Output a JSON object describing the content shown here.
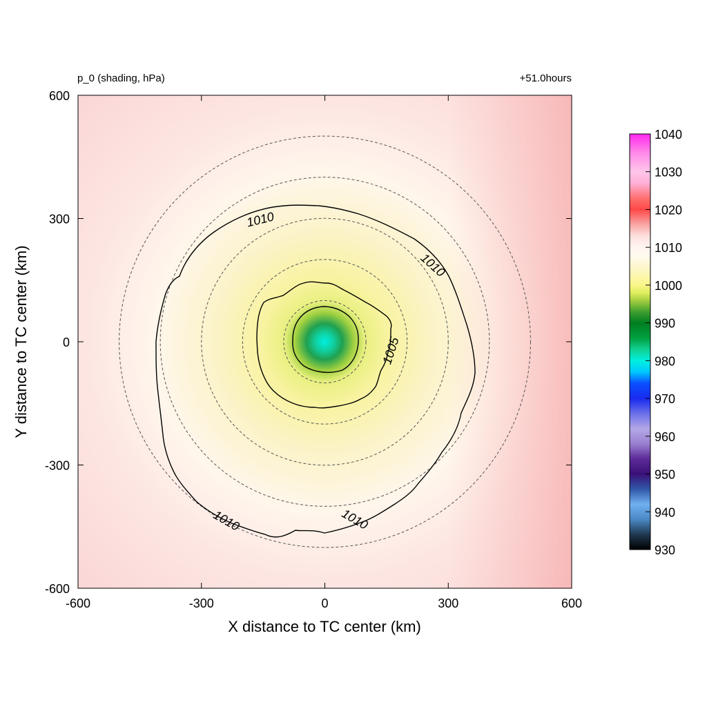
{
  "chart_data": {
    "type": "heatmap",
    "title_left": "p_0 (shading, hPa)",
    "title_right": "+51.0hours",
    "xlabel": "X distance to TC center (km)",
    "ylabel": "Y distance to TC center (km)",
    "xlim": [
      -600,
      600
    ],
    "ylim": [
      -600,
      600
    ],
    "xticks": [
      "-600",
      "-300",
      "0",
      "300",
      "600"
    ],
    "yticks": [
      "600",
      "300",
      "0",
      "-300",
      "-600"
    ],
    "center_pressure_hPa": 981,
    "dashed_circle_radii_km": [
      100,
      200,
      300,
      400,
      500
    ],
    "contours": [
      {
        "level": 1005,
        "labels": [
          "1005"
        ]
      },
      {
        "level": 1010,
        "labels": [
          "1010",
          "1010",
          "1010",
          "1010"
        ]
      }
    ],
    "colorbar": {
      "min": 930,
      "max": 1040,
      "ticks": [
        "1040",
        "1030",
        "1020",
        "1010",
        "1000",
        "990",
        "980",
        "970",
        "960",
        "950",
        "940",
        "930"
      ],
      "stops": [
        {
          "v": 930,
          "c": "#000000"
        },
        {
          "v": 934,
          "c": "#203850"
        },
        {
          "v": 938,
          "c": "#4a88c4"
        },
        {
          "v": 942,
          "c": "#70b0f0"
        },
        {
          "v": 946,
          "c": "#3058a8"
        },
        {
          "v": 950,
          "c": "#3a1078"
        },
        {
          "v": 954,
          "c": "#5c2a98"
        },
        {
          "v": 958,
          "c": "#9a80d0"
        },
        {
          "v": 962,
          "c": "#b4a8e8"
        },
        {
          "v": 966,
          "c": "#6a70e8"
        },
        {
          "v": 970,
          "c": "#1a2af0"
        },
        {
          "v": 974,
          "c": "#0a50ff"
        },
        {
          "v": 977,
          "c": "#00c8ff"
        },
        {
          "v": 980,
          "c": "#00f0e0"
        },
        {
          "v": 983,
          "c": "#10d090"
        },
        {
          "v": 986,
          "c": "#00a040"
        },
        {
          "v": 990,
          "c": "#007e20"
        },
        {
          "v": 993,
          "c": "#40a030"
        },
        {
          "v": 996,
          "c": "#a8d040"
        },
        {
          "v": 998,
          "c": "#e0ee60"
        },
        {
          "v": 1000,
          "c": "#fbf68a"
        },
        {
          "v": 1004,
          "c": "#fcf6c4"
        },
        {
          "v": 1008,
          "c": "#fffaf0"
        },
        {
          "v": 1010,
          "c": "#fff4f0"
        },
        {
          "v": 1013,
          "c": "#fde0de"
        },
        {
          "v": 1016,
          "c": "#f8a6a4"
        },
        {
          "v": 1020,
          "c": "#ff4848"
        },
        {
          "v": 1023,
          "c": "#ff7070"
        },
        {
          "v": 1027,
          "c": "#ffb0d8"
        },
        {
          "v": 1030,
          "c": "#ffc6ea"
        },
        {
          "v": 1035,
          "c": "#ff8ae8"
        },
        {
          "v": 1040,
          "c": "#ff28ee"
        }
      ]
    }
  }
}
